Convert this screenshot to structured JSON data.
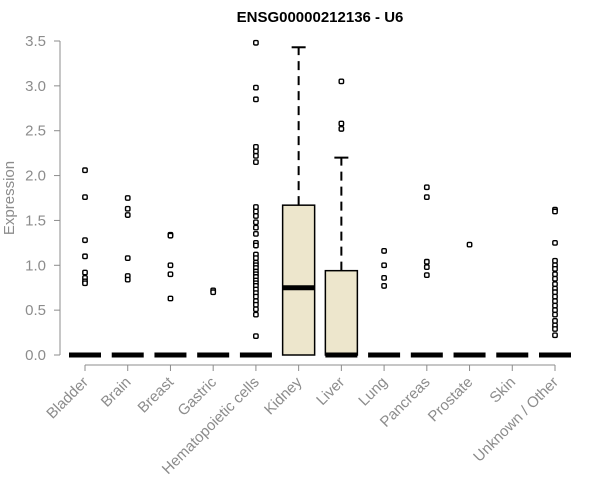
{
  "chart_data": {
    "type": "box",
    "title": "ENSG00000212136 - U6",
    "ylabel": "Expression",
    "xlabel": "",
    "ylim": [
      0,
      3.5
    ],
    "yticks": [
      "0.0",
      "0.5",
      "1.0",
      "1.5",
      "2.0",
      "2.5",
      "3.0",
      "3.5"
    ],
    "grid": false,
    "box_fill": "#ede6cc",
    "categories": [
      "Bladder",
      "Brain",
      "Breast",
      "Gastric",
      "Hematopoietic cells",
      "Kidney",
      "Liver",
      "Lung",
      "Pancreas",
      "Prostate",
      "Skin",
      "Unknown / Other"
    ],
    "boxes": [
      {
        "category": "Bladder",
        "q1": 0,
        "median": 0,
        "q3": 0,
        "whisker_low": 0,
        "whisker_high": 0,
        "outliers": [
          2.06,
          1.76,
          1.28,
          1.1,
          0.92,
          0.86,
          0.82,
          0.8
        ]
      },
      {
        "category": "Brain",
        "q1": 0,
        "median": 0,
        "q3": 0,
        "whisker_low": 0,
        "whisker_high": 0,
        "outliers": [
          1.75,
          1.63,
          1.56,
          1.08,
          0.88,
          0.84
        ]
      },
      {
        "category": "Breast",
        "q1": 0,
        "median": 0,
        "q3": 0,
        "whisker_low": 0,
        "whisker_high": 0,
        "outliers": [
          1.34,
          1.33,
          1.0,
          0.9,
          0.63
        ]
      },
      {
        "category": "Gastric",
        "q1": 0,
        "median": 0,
        "q3": 0,
        "whisker_low": 0,
        "whisker_high": 0,
        "outliers": [
          0.72,
          0.7
        ]
      },
      {
        "category": "Hematopoietic cells",
        "q1": 0,
        "median": 0,
        "q3": 0,
        "whisker_low": 0,
        "whisker_high": 0,
        "outliers": [
          3.48,
          2.98,
          2.85,
          2.32,
          2.27,
          2.22,
          2.15,
          1.65,
          1.6,
          1.55,
          1.48,
          1.42,
          1.35,
          1.25,
          1.22,
          1.12,
          1.08,
          1.03,
          1.0,
          0.97,
          0.93,
          0.9,
          0.87,
          0.83,
          0.8,
          0.77,
          0.73,
          0.69,
          0.65,
          0.6,
          0.56,
          0.51,
          0.45,
          0.21
        ]
      },
      {
        "category": "Kidney",
        "q1": 0,
        "median": 0.75,
        "q3": 1.67,
        "whisker_low": 0,
        "whisker_high": 3.43,
        "outliers": []
      },
      {
        "category": "Liver",
        "q1": 0,
        "median": 0,
        "q3": 0.94,
        "whisker_low": 0,
        "whisker_high": 2.2,
        "outliers": [
          3.05,
          2.58,
          2.52
        ]
      },
      {
        "category": "Lung",
        "q1": 0,
        "median": 0,
        "q3": 0,
        "whisker_low": 0,
        "whisker_high": 0,
        "outliers": [
          1.16,
          1.0,
          0.86,
          0.77
        ]
      },
      {
        "category": "Pancreas",
        "q1": 0,
        "median": 0,
        "q3": 0,
        "whisker_low": 0,
        "whisker_high": 0,
        "outliers": [
          1.87,
          1.76,
          1.04,
          0.98,
          0.89
        ]
      },
      {
        "category": "Prostate",
        "q1": 0,
        "median": 0,
        "q3": 0,
        "whisker_low": 0,
        "whisker_high": 0,
        "outliers": [
          1.23
        ]
      },
      {
        "category": "Skin",
        "q1": 0,
        "median": 0,
        "q3": 0,
        "whisker_low": 0,
        "whisker_high": 0,
        "outliers": []
      },
      {
        "category": "Unknown / Other",
        "q1": 0,
        "median": 0,
        "q3": 0,
        "whisker_low": 0,
        "whisker_high": 0,
        "outliers": [
          1.62,
          1.6,
          1.25,
          1.05,
          1.0,
          0.96,
          0.9,
          0.85,
          0.79,
          0.74,
          0.7,
          0.65,
          0.6,
          0.55,
          0.5,
          0.45,
          0.38,
          0.33,
          0.29,
          0.22
        ]
      }
    ]
  }
}
